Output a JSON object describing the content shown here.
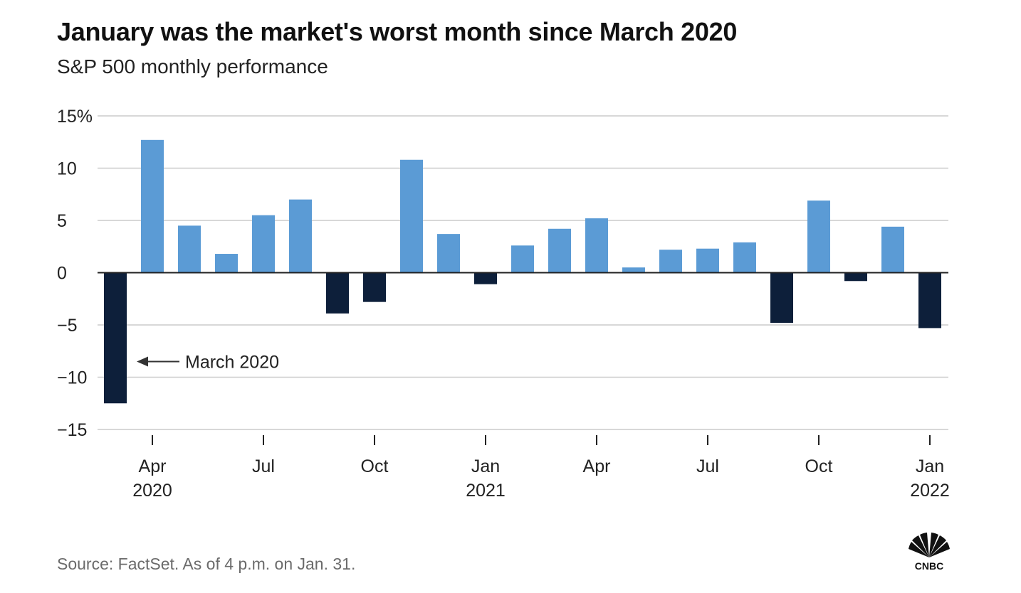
{
  "header": {
    "title": "January was the market's worst month since March 2020",
    "subtitle": "S&P 500 monthly performance"
  },
  "footer": {
    "source": "Source: FactSet. As of 4 p.m. on Jan. 31.",
    "logo_text": "CNBC"
  },
  "colors": {
    "positive": "#5b9bd5",
    "negative": "#0d1f3a",
    "grid": "#cccccc",
    "axis": "#222222"
  },
  "chart_data": {
    "type": "bar",
    "title": "January was the market's worst month since March 2020",
    "subtitle": "S&P 500 monthly performance",
    "xlabel": "",
    "ylabel": "",
    "ylim": [
      -15,
      15
    ],
    "yticks": [
      15,
      10,
      5,
      0,
      -5,
      -10,
      -15
    ],
    "ytick_labels": [
      "15%",
      "10",
      "5",
      "0",
      "−5",
      "−10",
      "−15"
    ],
    "grid": true,
    "categories": [
      "Mar 2020",
      "Apr 2020",
      "May 2020",
      "Jun 2020",
      "Jul 2020",
      "Aug 2020",
      "Sep 2020",
      "Oct 2020",
      "Nov 2020",
      "Dec 2020",
      "Jan 2021",
      "Feb 2021",
      "Mar 2021",
      "Apr 2021",
      "May 2021",
      "Jun 2021",
      "Jul 2021",
      "Aug 2021",
      "Sep 2021",
      "Oct 2021",
      "Nov 2021",
      "Dec 2021",
      "Jan 2022"
    ],
    "values": [
      -12.5,
      12.7,
      4.5,
      1.8,
      5.5,
      7.0,
      -3.9,
      -2.8,
      10.8,
      3.7,
      -1.1,
      2.6,
      4.2,
      5.2,
      0.5,
      2.2,
      2.3,
      2.9,
      -4.8,
      6.9,
      -0.8,
      4.4,
      -5.3
    ],
    "xticks": [
      {
        "index": 1,
        "month": "Apr",
        "year": "2020"
      },
      {
        "index": 4,
        "month": "Jul",
        "year": ""
      },
      {
        "index": 7,
        "month": "Oct",
        "year": ""
      },
      {
        "index": 10,
        "month": "Jan",
        "year": "2021"
      },
      {
        "index": 13,
        "month": "Apr",
        "year": ""
      },
      {
        "index": 16,
        "month": "Jul",
        "year": ""
      },
      {
        "index": 19,
        "month": "Oct",
        "year": ""
      },
      {
        "index": 22,
        "month": "Jan",
        "year": "2022"
      }
    ],
    "annotations": [
      {
        "text": "March 2020",
        "index": 0,
        "value": -8.5
      }
    ]
  }
}
